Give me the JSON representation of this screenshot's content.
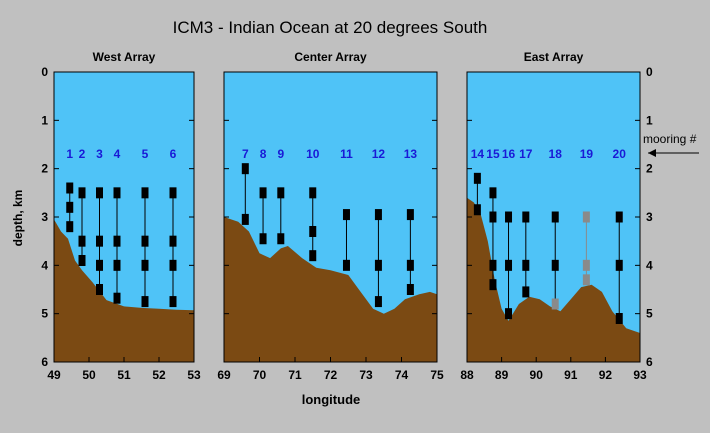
{
  "title": "ICM3 - Indian Ocean at 20 degrees South",
  "colors": {
    "background": "#c0c0c0",
    "water": "#4fc3f7",
    "seafloor": "#7b4a13",
    "mooring_label": "#1a1ad6",
    "instrument": "#000000",
    "instrument_inactive": "#8a8a8a"
  },
  "chart_data": {
    "type": "diagram",
    "ylabel": "depth, km",
    "xlabel": "longitude",
    "ylim": [
      0,
      6
    ],
    "yticks": [
      "0",
      "1",
      "2",
      "3",
      "4",
      "5",
      "6"
    ],
    "annotation": "mooring #",
    "panels": [
      {
        "id": "west",
        "title": "West Array",
        "xlim": [
          49,
          53
        ],
        "xticks": [
          "49",
          "50",
          "51",
          "52",
          "53"
        ],
        "bathymetry": [
          [
            49,
            3.05
          ],
          [
            49.2,
            3.3
          ],
          [
            49.4,
            3.45
          ],
          [
            49.6,
            3.9
          ],
          [
            49.8,
            4.1
          ],
          [
            50.1,
            4.35
          ],
          [
            50.5,
            4.72
          ],
          [
            51.0,
            4.85
          ],
          [
            51.5,
            4.88
          ],
          [
            52.0,
            4.9
          ],
          [
            52.5,
            4.92
          ],
          [
            53,
            4.93
          ]
        ],
        "moorings": [
          {
            "label": "1",
            "lon": 49.45,
            "top": 2.4,
            "bottom": 3.3,
            "instruments": [
              2.4,
              2.8,
              3.2
            ],
            "status": "active"
          },
          {
            "label": "2",
            "lon": 49.8,
            "top": 2.5,
            "bottom": 3.9,
            "instruments": [
              2.5,
              3.5,
              3.9
            ],
            "status": "active"
          },
          {
            "label": "3",
            "lon": 50.3,
            "top": 2.5,
            "bottom": 4.5,
            "instruments": [
              2.5,
              3.5,
              4.0,
              4.5
            ],
            "status": "active"
          },
          {
            "label": "4",
            "lon": 50.8,
            "top": 2.5,
            "bottom": 4.68,
            "instruments": [
              2.5,
              3.5,
              4.0,
              4.68
            ],
            "status": "active"
          },
          {
            "label": "5",
            "lon": 51.6,
            "top": 2.5,
            "bottom": 4.75,
            "instruments": [
              2.5,
              3.5,
              4.0,
              4.75
            ],
            "status": "active"
          },
          {
            "label": "6",
            "lon": 52.4,
            "top": 2.5,
            "bottom": 4.75,
            "instruments": [
              2.5,
              3.5,
              4.0,
              4.75
            ],
            "status": "active"
          }
        ]
      },
      {
        "id": "center",
        "title": "Center Array",
        "xlim": [
          69,
          75
        ],
        "xticks": [
          "69",
          "70",
          "71",
          "72",
          "73",
          "74",
          "75"
        ],
        "bathymetry": [
          [
            69,
            3.0
          ],
          [
            69.4,
            3.1
          ],
          [
            69.7,
            3.3
          ],
          [
            70.0,
            3.75
          ],
          [
            70.3,
            3.85
          ],
          [
            70.6,
            3.65
          ],
          [
            70.8,
            3.6
          ],
          [
            71.2,
            3.85
          ],
          [
            71.6,
            4.05
          ],
          [
            72.0,
            4.1
          ],
          [
            72.5,
            4.2
          ],
          [
            72.8,
            4.5
          ],
          [
            73.2,
            4.9
          ],
          [
            73.5,
            5.0
          ],
          [
            73.8,
            4.9
          ],
          [
            74.1,
            4.7
          ],
          [
            74.5,
            4.6
          ],
          [
            74.8,
            4.55
          ],
          [
            75,
            4.6
          ]
        ],
        "moorings": [
          {
            "label": "7",
            "lon": 69.6,
            "top": 2.0,
            "bottom": 3.05,
            "instruments": [
              2.0,
              3.05
            ],
            "status": "active"
          },
          {
            "label": "8",
            "lon": 70.1,
            "top": 2.5,
            "bottom": 3.45,
            "instruments": [
              2.5,
              3.45
            ],
            "status": "active"
          },
          {
            "label": "9",
            "lon": 70.6,
            "top": 2.5,
            "bottom": 3.45,
            "instruments": [
              2.5,
              3.45
            ],
            "status": "active"
          },
          {
            "label": "10",
            "lon": 71.5,
            "top": 2.5,
            "bottom": 3.8,
            "instruments": [
              2.5,
              3.3,
              3.8
            ],
            "status": "active"
          },
          {
            "label": "11",
            "lon": 72.45,
            "top": 2.95,
            "bottom": 4.0,
            "instruments": [
              2.95,
              4.0
            ],
            "status": "active"
          },
          {
            "label": "12",
            "lon": 73.35,
            "top": 2.95,
            "bottom": 4.75,
            "instruments": [
              2.95,
              4.0,
              4.75
            ],
            "status": "active"
          },
          {
            "label": "13",
            "lon": 74.25,
            "top": 2.95,
            "bottom": 4.5,
            "instruments": [
              2.95,
              4.0,
              4.5
            ],
            "status": "active"
          }
        ]
      },
      {
        "id": "east",
        "title": "East Array",
        "xlim": [
          88,
          93
        ],
        "xticks": [
          "88",
          "89",
          "90",
          "91",
          "92",
          "93"
        ],
        "bathymetry": [
          [
            88,
            2.6
          ],
          [
            88.2,
            2.7
          ],
          [
            88.4,
            2.95
          ],
          [
            88.6,
            3.5
          ],
          [
            88.8,
            4.3
          ],
          [
            89.0,
            4.9
          ],
          [
            89.2,
            5.15
          ],
          [
            89.5,
            4.8
          ],
          [
            89.8,
            4.65
          ],
          [
            90.1,
            4.7
          ],
          [
            90.4,
            4.85
          ],
          [
            90.7,
            4.95
          ],
          [
            91.0,
            4.7
          ],
          [
            91.3,
            4.45
          ],
          [
            91.6,
            4.4
          ],
          [
            91.9,
            4.55
          ],
          [
            92.2,
            4.95
          ],
          [
            92.6,
            5.3
          ],
          [
            93,
            5.4
          ]
        ],
        "moorings": [
          {
            "label": "14",
            "lon": 88.3,
            "top": 2.2,
            "bottom": 2.85,
            "instruments": [
              2.2,
              2.85
            ],
            "status": "active"
          },
          {
            "label": "15",
            "lon": 88.75,
            "top": 2.5,
            "bottom": 4.4,
            "instruments": [
              2.5,
              3.0,
              4.0,
              4.4
            ],
            "status": "active"
          },
          {
            "label": "16",
            "lon": 89.2,
            "top": 3.0,
            "bottom": 5.0,
            "instruments": [
              3.0,
              4.0,
              5.0
            ],
            "status": "active"
          },
          {
            "label": "17",
            "lon": 89.7,
            "top": 3.0,
            "bottom": 4.55,
            "instruments": [
              3.0,
              4.0,
              4.55
            ],
            "status": "active"
          },
          {
            "label": "18",
            "lon": 90.55,
            "top": 3.0,
            "bottom": 4.8,
            "instruments": [
              3.0,
              4.0
            ],
            "lost": [
              4.8
            ],
            "status": "partial"
          },
          {
            "label": "19",
            "lon": 91.45,
            "top": 3.0,
            "bottom": 4.3,
            "instruments": [],
            "lost": [
              3.0,
              4.0,
              4.3
            ],
            "status": "lost"
          },
          {
            "label": "20",
            "lon": 92.4,
            "top": 3.0,
            "bottom": 5.1,
            "instruments": [
              3.0,
              4.0,
              5.1
            ],
            "status": "active"
          }
        ]
      }
    ]
  }
}
